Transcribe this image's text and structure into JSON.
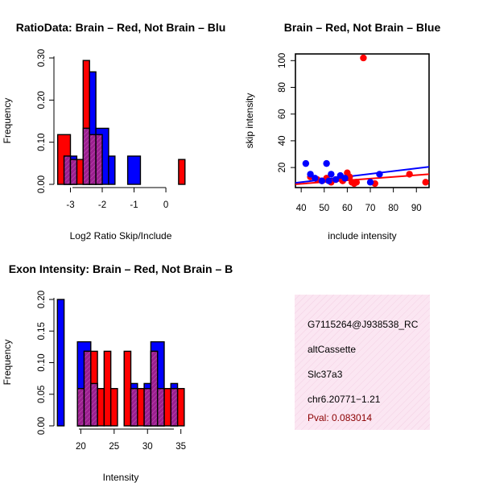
{
  "colors": {
    "red": "#ff0000",
    "blue": "#0000ff",
    "overlap": "#9b1f8f",
    "info_bg": "#fbe6f2"
  },
  "chart_data": [
    {
      "id": "ratio-hist",
      "type": "bar",
      "title": "RatioData: Brain – Red, Not Brain – Blu",
      "xlabel": "Log2 Ratio Skip/Include",
      "ylabel": "Frequency",
      "xlim": [
        -3.45,
        0.75
      ],
      "ylim": [
        0,
        0.3
      ],
      "xticks": [
        "-3",
        "-2",
        "-1",
        "0"
      ],
      "xtick_values": [
        -3,
        -2,
        -1,
        0
      ],
      "yticks": [
        "0.00",
        "0.10",
        "0.20",
        "0.30"
      ],
      "ytick_values": [
        0,
        0.1,
        0.2,
        0.3
      ],
      "series": [
        {
          "name": "Brain",
          "color": "red",
          "bins": [
            {
              "x0": -3.4,
              "x1": -3.0,
              "value": 0.118
            },
            {
              "x0": -3.0,
              "x1": -2.8,
              "value": 0.059
            },
            {
              "x0": -2.8,
              "x1": -2.6,
              "value": 0.059
            },
            {
              "x0": -2.6,
              "x1": -2.4,
              "value": 0.294
            },
            {
              "x0": -2.4,
              "x1": -2.2,
              "value": 0.118
            },
            {
              "x0": -2.2,
              "x1": -2.0,
              "value": 0.118
            },
            {
              "x0": 0.4,
              "x1": 0.6,
              "value": 0.059
            }
          ]
        },
        {
          "name": "Not Brain",
          "color": "blue",
          "bins": [
            {
              "x0": -3.2,
              "x1": -3.0,
              "value": 0.067
            },
            {
              "x0": -3.0,
              "x1": -2.8,
              "value": 0.067
            },
            {
              "x0": -2.6,
              "x1": -2.4,
              "value": 0.133
            },
            {
              "x0": -2.4,
              "x1": -2.2,
              "value": 0.267
            },
            {
              "x0": -2.2,
              "x1": -1.8,
              "value": 0.133
            },
            {
              "x0": -1.8,
              "x1": -1.6,
              "value": 0.067
            },
            {
              "x0": -1.2,
              "x1": -0.8,
              "value": 0.067
            }
          ]
        }
      ]
    },
    {
      "id": "intensity-scatter",
      "type": "scatter",
      "title": "Brain – Red, Not Brain – Blue",
      "xlabel": "include intensity",
      "ylabel": "skip intensity",
      "xlim": [
        37.5,
        95.5
      ],
      "ylim": [
        5,
        105
      ],
      "xticks": [
        "40",
        "50",
        "60",
        "70",
        "80",
        "90"
      ],
      "xtick_values": [
        40,
        50,
        60,
        70,
        80,
        90
      ],
      "yticks": [
        "20",
        "40",
        "60",
        "80",
        "100"
      ],
      "ytick_values": [
        20,
        40,
        60,
        80,
        100
      ],
      "series": [
        {
          "name": "Brain",
          "color": "red",
          "points": [
            [
              44,
              13
            ],
            [
              47,
              11
            ],
            [
              49,
              10
            ],
            [
              51,
              12
            ],
            [
              53,
              9
            ],
            [
              55,
              11
            ],
            [
              57,
              12
            ],
            [
              58,
              10
            ],
            [
              60,
              16
            ],
            [
              61,
              13
            ],
            [
              62,
              9
            ],
            [
              63,
              8
            ],
            [
              64,
              9
            ],
            [
              67,
              102
            ],
            [
              72,
              8
            ],
            [
              87,
              15
            ],
            [
              94,
              9
            ]
          ],
          "fit": [
            [
              37.5,
              7.5
            ],
            [
              95.5,
              15
            ]
          ]
        },
        {
          "name": "Not Brain",
          "color": "blue",
          "points": [
            [
              42,
              23
            ],
            [
              44,
              15
            ],
            [
              46,
              12
            ],
            [
              49,
              10
            ],
            [
              51,
              23
            ],
            [
              52,
              10
            ],
            [
              53,
              15
            ],
            [
              55,
              11
            ],
            [
              57,
              14
            ],
            [
              59,
              12
            ],
            [
              70,
              9
            ],
            [
              74,
              15
            ]
          ],
          "fit": [
            [
              37.5,
              8.5
            ],
            [
              95.5,
              20.5
            ]
          ]
        }
      ]
    },
    {
      "id": "intensity-hist",
      "type": "bar",
      "title": "Exon Intensity: Brain – Red, Not Brain – B",
      "xlabel": "Intensity",
      "ylabel": "Frequency",
      "xlim": [
        16.4,
        36.4
      ],
      "ylim": [
        0,
        0.2
      ],
      "xticks": [
        "20",
        "25",
        "30",
        "35"
      ],
      "xtick_values": [
        20,
        25,
        30,
        35
      ],
      "yticks": [
        "0.00",
        "0.05",
        "0.10",
        "0.15",
        "0.20"
      ],
      "ytick_values": [
        0,
        0.05,
        0.1,
        0.15,
        0.2
      ],
      "series": [
        {
          "name": "Not Brain",
          "color": "blue",
          "bins": [
            {
              "x0": 16.5,
              "x1": 17.5,
              "value": 0.2
            },
            {
              "x0": 19.5,
              "x1": 21.5,
              "value": 0.133
            },
            {
              "x0": 21.5,
              "x1": 22.5,
              "value": 0.067
            },
            {
              "x0": 27.5,
              "x1": 28.5,
              "value": 0.067
            },
            {
              "x0": 29.5,
              "x1": 30.5,
              "value": 0.067
            },
            {
              "x0": 30.5,
              "x1": 32.5,
              "value": 0.133
            },
            {
              "x0": 33.5,
              "x1": 34.5,
              "value": 0.067
            }
          ]
        },
        {
          "name": "Brain",
          "color": "red",
          "bins": [
            {
              "x0": 19.5,
              "x1": 20.5,
              "value": 0.059
            },
            {
              "x0": 20.5,
              "x1": 21.5,
              "value": 0.118
            },
            {
              "x0": 21.5,
              "x1": 22.5,
              "value": 0.118
            },
            {
              "x0": 22.5,
              "x1": 23.5,
              "value": 0.059
            },
            {
              "x0": 23.5,
              "x1": 24.5,
              "value": 0.118
            },
            {
              "x0": 24.5,
              "x1": 25.5,
              "value": 0.059
            },
            {
              "x0": 25.5,
              "x1": 26.5,
              "value": 0
            },
            {
              "x0": 26.5,
              "x1": 27.5,
              "value": 0.118
            },
            {
              "x0": 27.5,
              "x1": 28.5,
              "value": 0.059
            },
            {
              "x0": 28.5,
              "x1": 29.5,
              "value": 0.059
            },
            {
              "x0": 29.5,
              "x1": 30.5,
              "value": 0.059
            },
            {
              "x0": 30.5,
              "x1": 31.5,
              "value": 0.118
            },
            {
              "x0": 31.5,
              "x1": 32.5,
              "value": 0.059
            },
            {
              "x0": 32.5,
              "x1": 33.5,
              "value": 0.059
            },
            {
              "x0": 33.5,
              "x1": 34.5,
              "value": 0.059
            },
            {
              "x0": 34.5,
              "x1": 35.5,
              "value": 0.059
            }
          ]
        }
      ]
    }
  ],
  "info_panel": {
    "probe_id": "G7115264@J938538_RC",
    "event_type": "altCassette",
    "gene": "Slc37a3",
    "location": "chr6.20771−1.21",
    "pval_label": "Pval: 0.083014"
  }
}
